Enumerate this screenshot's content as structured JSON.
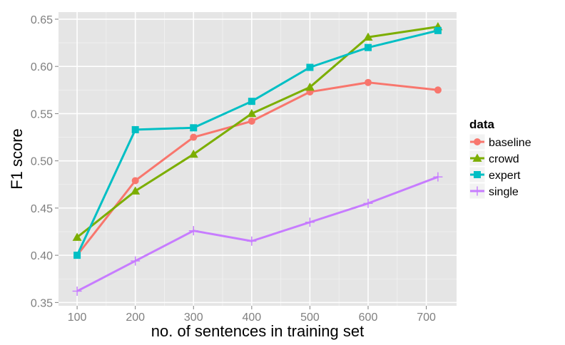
{
  "chart_data": {
    "type": "line",
    "xlabel": "no. of sentences in training set",
    "ylabel": "F1 score",
    "x": [
      100,
      200,
      300,
      400,
      500,
      600,
      720
    ],
    "xticks": [
      100,
      200,
      300,
      400,
      500,
      600,
      700
    ],
    "xlim": [
      68,
      752
    ],
    "yticks": [
      0.35,
      0.4,
      0.45,
      0.5,
      0.55,
      0.6,
      0.65
    ],
    "ylim": [
      0.3465,
      0.6575
    ],
    "grid": true,
    "legend_title": "data",
    "legend_position": "right",
    "series": [
      {
        "name": "baseline",
        "color": "#f8766d",
        "marker": "circle",
        "values": [
          0.4,
          0.479,
          0.525,
          0.542,
          0.573,
          0.583,
          0.575
        ]
      },
      {
        "name": "crowd",
        "color": "#7cae00",
        "marker": "triangle",
        "values": [
          0.419,
          0.468,
          0.507,
          0.55,
          0.578,
          0.631,
          0.642
        ]
      },
      {
        "name": "expert",
        "color": "#00bfc4",
        "marker": "square",
        "values": [
          0.4,
          0.533,
          0.535,
          0.563,
          0.599,
          0.62,
          0.638
        ]
      },
      {
        "name": "single",
        "color": "#c77cff",
        "marker": "plus",
        "values": [
          0.362,
          0.394,
          0.426,
          0.415,
          0.435,
          0.455,
          0.483
        ]
      }
    ]
  }
}
